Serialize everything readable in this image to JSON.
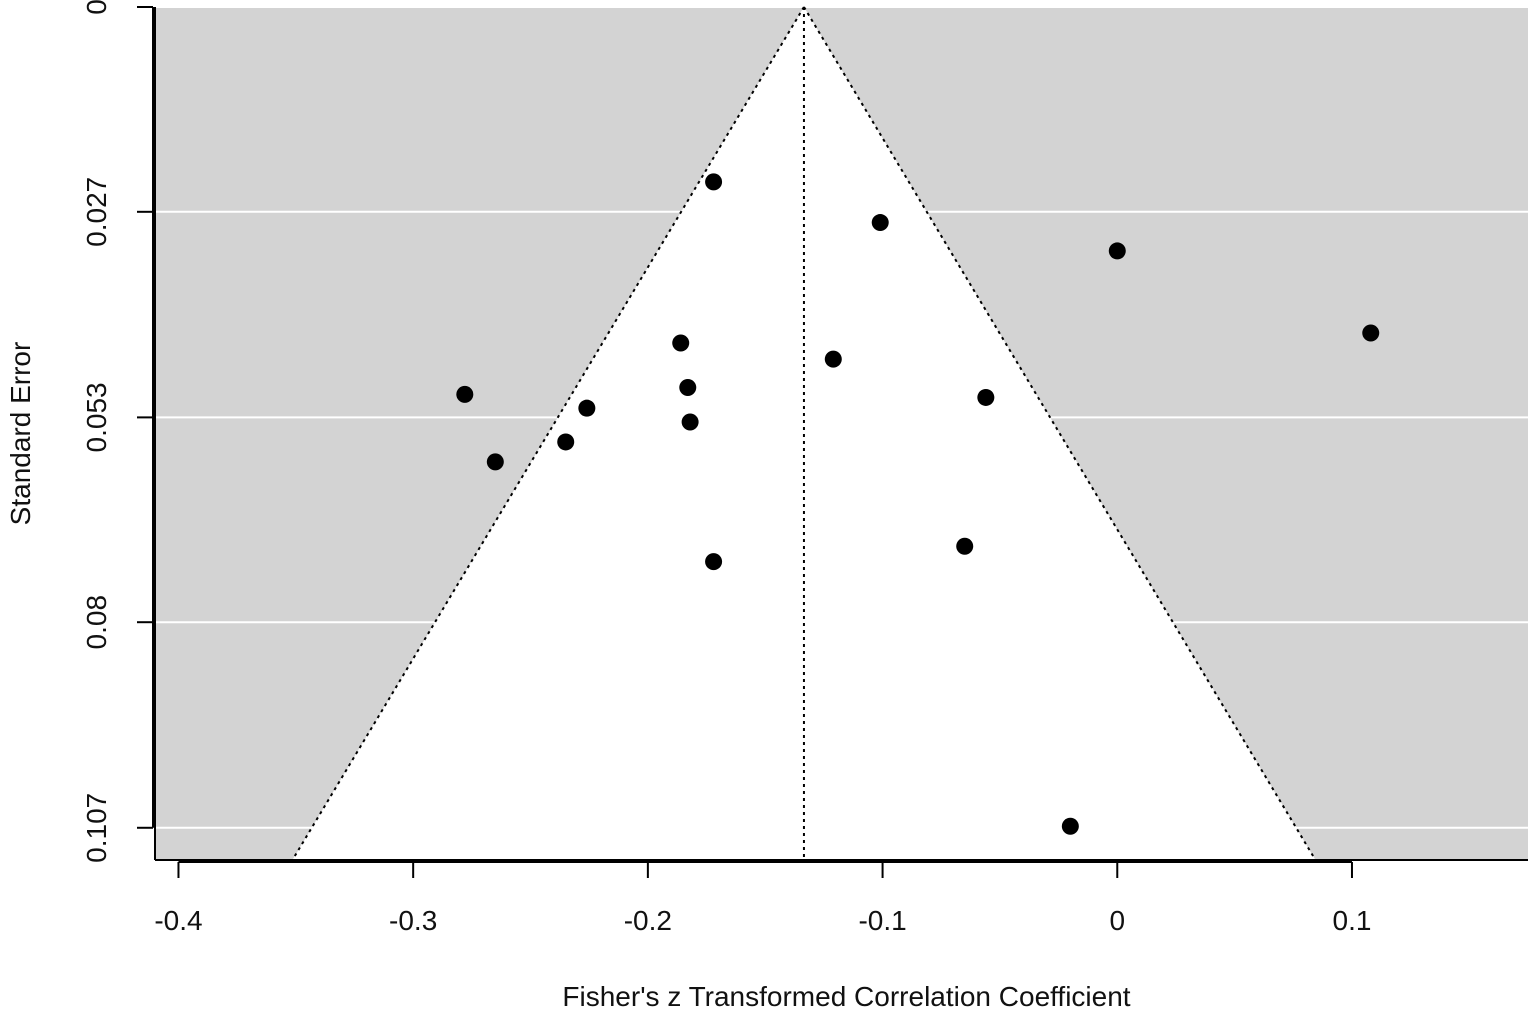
{
  "chart_data": {
    "type": "scatter",
    "title": "",
    "xlabel": "Fisher's z Transformed Correlation Coefficient",
    "ylabel": "Standard Error",
    "xlim": [
      -0.41,
      0.175
    ],
    "ylim": [
      0.1112,
      0
    ],
    "y_inverted": true,
    "x_ticks": [
      -0.4,
      -0.3,
      -0.2,
      -0.1,
      0,
      0.1
    ],
    "x_tick_labels": [
      "-0.4",
      "-0.3",
      "-0.2",
      "-0.1",
      "0",
      "0.1"
    ],
    "y_ticks": [
      0,
      0.0267,
      0.0535,
      0.0802,
      0.107
    ],
    "y_tick_labels": [
      "0",
      "0.027",
      "0.053",
      "0.08",
      "0.107"
    ],
    "grid": "horizontal",
    "background_color": "#d3d3d3",
    "funnel": {
      "center": -0.1335,
      "z": 1.96,
      "fill_color": "#ffffff"
    },
    "points": [
      {
        "x": -0.172,
        "y": 0.0228
      },
      {
        "x": -0.101,
        "y": 0.0281
      },
      {
        "x": 0.0,
        "y": 0.0318
      },
      {
        "x": 0.108,
        "y": 0.0425
      },
      {
        "x": -0.186,
        "y": 0.0438
      },
      {
        "x": -0.121,
        "y": 0.0459
      },
      {
        "x": -0.278,
        "y": 0.0505
      },
      {
        "x": -0.183,
        "y": 0.0496
      },
      {
        "x": -0.056,
        "y": 0.0509
      },
      {
        "x": -0.226,
        "y": 0.0523
      },
      {
        "x": -0.182,
        "y": 0.0541
      },
      {
        "x": -0.235,
        "y": 0.0567
      },
      {
        "x": -0.265,
        "y": 0.0593
      },
      {
        "x": -0.065,
        "y": 0.0703
      },
      {
        "x": -0.172,
        "y": 0.0723
      },
      {
        "x": -0.02,
        "y": 0.1068
      }
    ],
    "point_color": "#000000"
  }
}
